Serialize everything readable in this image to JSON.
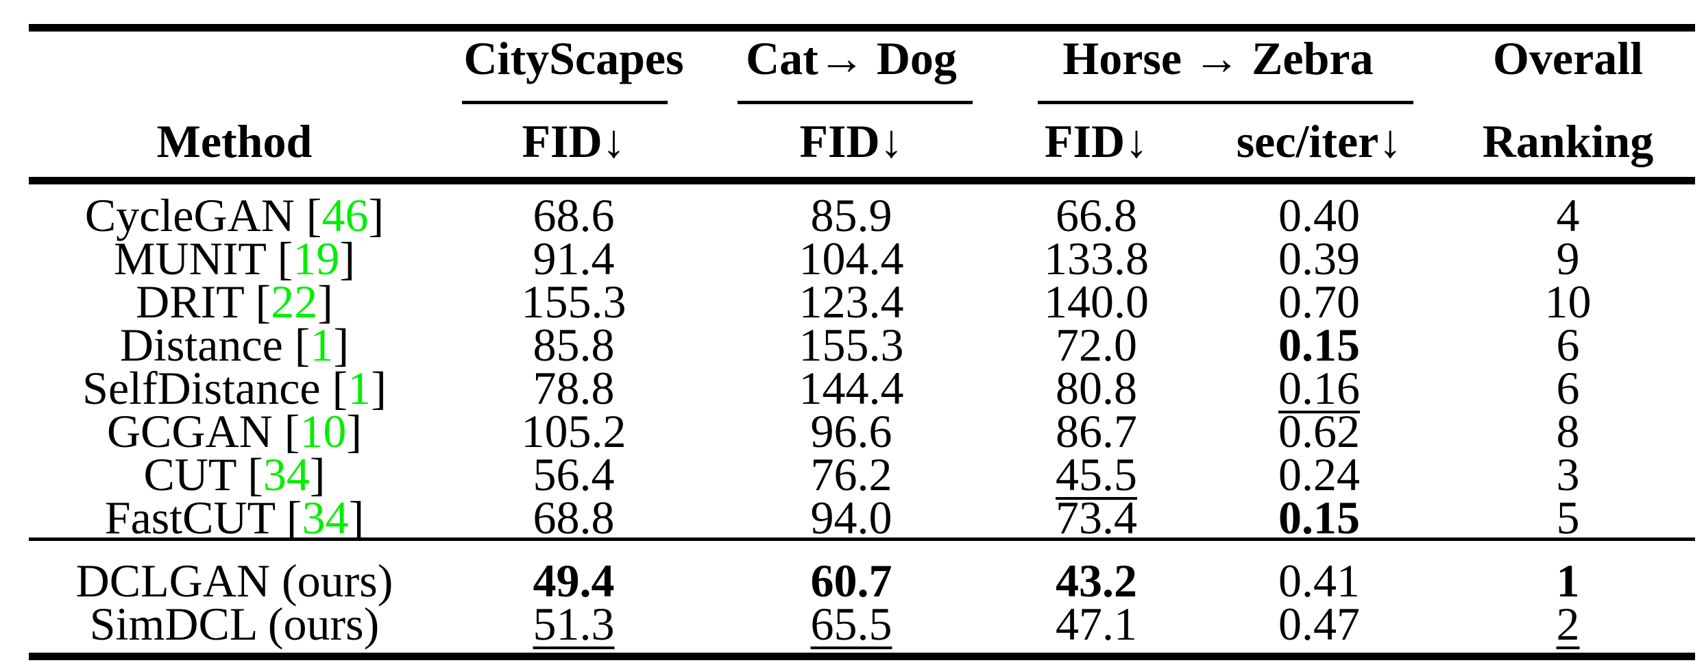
{
  "table": {
    "colors": {
      "citation_green": "#00ee00"
    },
    "header": {
      "method_label": "Method",
      "group_cityscapes": "CityScapes",
      "group_catdog": "Cat→ Dog",
      "group_horsezebra": "Horse → Zebra",
      "group_overall": "Overall",
      "sub_cityscapes_fid": "FID↓",
      "sub_catdog_fid": "FID↓",
      "sub_horsezebra_fid": "FID↓",
      "sub_horsezebra_seciter": "sec/iter↓",
      "sub_overall_ranking": "Ranking"
    },
    "rows": [
      {
        "method_prefix": "CycleGAN [",
        "cite": "46",
        "method_suffix": "]",
        "cells": [
          {
            "text": "68.6",
            "style": "plain"
          },
          {
            "text": "85.9",
            "style": "plain"
          },
          {
            "text": "66.8",
            "style": "plain"
          },
          {
            "text": "0.40",
            "style": "plain"
          },
          {
            "text": "4",
            "style": "plain"
          }
        ]
      },
      {
        "method_prefix": "MUNIT [",
        "cite": "19",
        "method_suffix": "]",
        "cells": [
          {
            "text": "91.4",
            "style": "plain"
          },
          {
            "text": "104.4",
            "style": "plain"
          },
          {
            "text": "133.8",
            "style": "plain"
          },
          {
            "text": "0.39",
            "style": "plain"
          },
          {
            "text": "9",
            "style": "plain"
          }
        ]
      },
      {
        "method_prefix": "DRIT [",
        "cite": "22",
        "method_suffix": "]",
        "cells": [
          {
            "text": "155.3",
            "style": "plain"
          },
          {
            "text": "123.4",
            "style": "plain"
          },
          {
            "text": "140.0",
            "style": "plain"
          },
          {
            "text": "0.70",
            "style": "plain"
          },
          {
            "text": "10",
            "style": "plain"
          }
        ]
      },
      {
        "method_prefix": "Distance [",
        "cite": "1",
        "method_suffix": "]",
        "cells": [
          {
            "text": "85.8",
            "style": "plain"
          },
          {
            "text": "155.3",
            "style": "plain"
          },
          {
            "text": "72.0",
            "style": "plain"
          },
          {
            "text": "0.15",
            "style": "bold"
          },
          {
            "text": "6",
            "style": "plain"
          }
        ]
      },
      {
        "method_prefix": "SelfDistance [",
        "cite": "1",
        "method_suffix": "]",
        "cells": [
          {
            "text": "78.8",
            "style": "plain"
          },
          {
            "text": "144.4",
            "style": "plain"
          },
          {
            "text": "80.8",
            "style": "plain"
          },
          {
            "text": "0.16",
            "style": "underline"
          },
          {
            "text": "6",
            "style": "plain"
          }
        ]
      },
      {
        "method_prefix": "GCGAN [",
        "cite": "10",
        "method_suffix": "]",
        "cells": [
          {
            "text": "105.2",
            "style": "plain"
          },
          {
            "text": "96.6",
            "style": "plain"
          },
          {
            "text": "86.7",
            "style": "plain"
          },
          {
            "text": "0.62",
            "style": "plain"
          },
          {
            "text": "8",
            "style": "plain"
          }
        ]
      },
      {
        "method_prefix": "CUT [",
        "cite": "34",
        "method_suffix": "]",
        "cells": [
          {
            "text": "56.4",
            "style": "plain"
          },
          {
            "text": "76.2",
            "style": "plain"
          },
          {
            "text": "45.5",
            "style": "underline"
          },
          {
            "text": "0.24",
            "style": "plain"
          },
          {
            "text": "3",
            "style": "plain"
          }
        ]
      },
      {
        "method_prefix": "FastCUT [",
        "cite": "34",
        "method_suffix": "]",
        "cells": [
          {
            "text": "68.8",
            "style": "plain"
          },
          {
            "text": "94.0",
            "style": "plain"
          },
          {
            "text": "73.4",
            "style": "plain"
          },
          {
            "text": "0.15",
            "style": "bold"
          },
          {
            "text": "5",
            "style": "plain"
          }
        ]
      }
    ],
    "ours": [
      {
        "method_prefix": "DCLGAN (ours)",
        "cite": "",
        "method_suffix": "",
        "cells": [
          {
            "text": "49.4",
            "style": "bold"
          },
          {
            "text": "60.7",
            "style": "bold"
          },
          {
            "text": "43.2",
            "style": "bold"
          },
          {
            "text": "0.41",
            "style": "plain"
          },
          {
            "text": "1",
            "style": "bold"
          }
        ]
      },
      {
        "method_prefix": "SimDCL (ours)",
        "cite": "",
        "method_suffix": "",
        "cells": [
          {
            "text": "51.3",
            "style": "underline"
          },
          {
            "text": "65.5",
            "style": "underline"
          },
          {
            "text": "47.1",
            "style": "plain"
          },
          {
            "text": "0.47",
            "style": "plain"
          },
          {
            "text": "2",
            "style": "underline"
          }
        ]
      }
    ]
  }
}
